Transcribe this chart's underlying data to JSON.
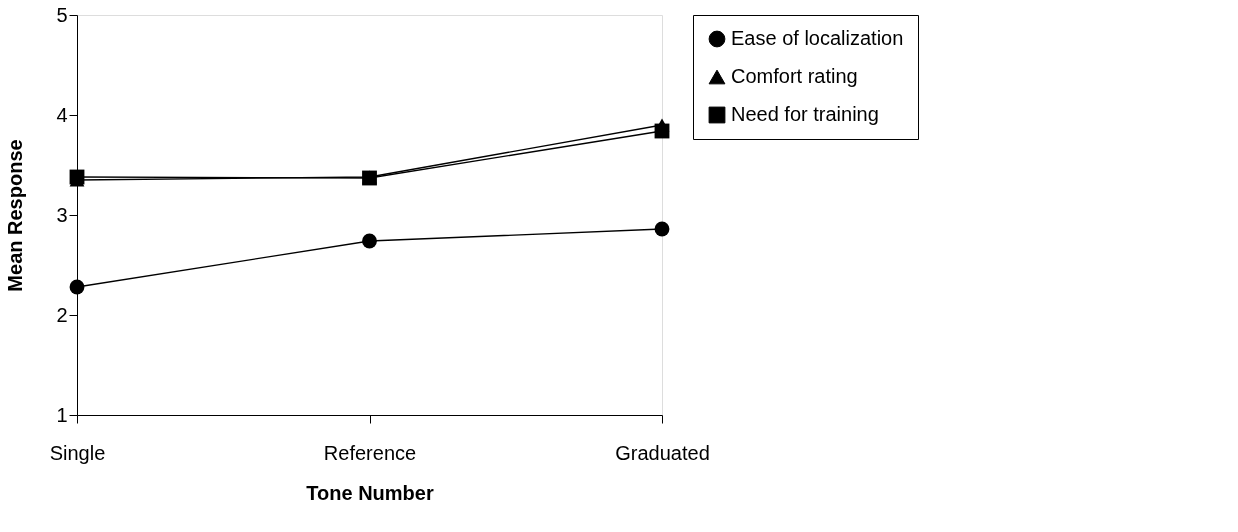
{
  "chart_data": {
    "type": "line",
    "xlabel": "Tone Number",
    "ylabel": "Mean Response",
    "categories": [
      "Single",
      "Reference",
      "Graduated"
    ],
    "series": [
      {
        "name": "Ease of localization",
        "color": "#000000",
        "marker": "circle",
        "values": [
          2.28,
          2.74,
          2.86
        ]
      },
      {
        "name": "Comfort rating",
        "color": "#000000",
        "marker": "triangle",
        "values": [
          3.35,
          3.38,
          3.9
        ]
      },
      {
        "name": "Need for training",
        "color": "#000000",
        "marker": "square",
        "values": [
          3.38,
          3.37,
          3.84
        ]
      }
    ],
    "ylim": [
      1,
      5
    ],
    "yticks": [
      1,
      2,
      3,
      4,
      5
    ],
    "grid": false,
    "legend": "right",
    "line_style": "solid"
  }
}
